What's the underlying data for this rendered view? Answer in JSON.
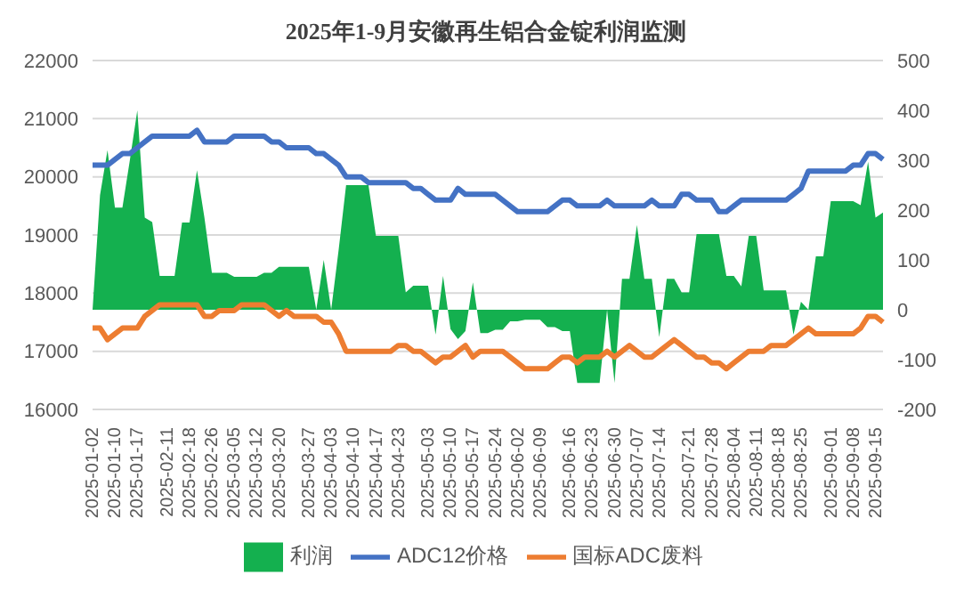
{
  "chart_data": {
    "type": "line",
    "title": "2025年1-9月安徽再生铝合金锭利润监测",
    "categories": [
      "2025-01-02",
      null,
      null,
      "2025-01-10",
      null,
      null,
      "2025-01-17",
      null,
      null,
      null,
      "2025-02-11",
      null,
      null,
      "2025-02-18",
      null,
      null,
      "2025-02-26",
      null,
      null,
      "2025-03-05",
      null,
      null,
      "2025-03-12",
      null,
      null,
      "2025-03-20",
      null,
      null,
      null,
      "2025-03-27",
      null,
      null,
      "2025-04-03",
      null,
      null,
      "2025-04-10",
      null,
      null,
      "2025-04-17",
      null,
      null,
      "2025-04-23",
      null,
      null,
      null,
      "2025-05-03",
      null,
      null,
      "2025-05-10",
      null,
      null,
      "2025-05-17",
      null,
      null,
      "2025-05-24",
      null,
      null,
      "2025-06-02",
      null,
      null,
      "2025-06-09",
      null,
      null,
      null,
      "2025-06-16",
      null,
      null,
      "2025-06-23",
      null,
      null,
      "2025-06-30",
      null,
      null,
      "2025-07-07",
      null,
      null,
      "2025-07-14",
      null,
      null,
      null,
      "2025-07-21",
      null,
      null,
      "2025-07-28",
      null,
      null,
      "2025-08-04",
      null,
      null,
      "2025-08-11",
      null,
      null,
      "2025-08-18",
      null,
      null,
      "2025-08-25",
      null,
      null,
      null,
      "2025-09-01",
      null,
      null,
      "2025-09-08",
      null,
      null,
      "2025-09-15",
      null
    ],
    "series": [
      {
        "name": "利润",
        "type": "area",
        "axis": "y2",
        "color": "#14b04f",
        "values": [
          0,
          230,
          320,
          205,
          205,
          300,
          400,
          185,
          176,
          68,
          68,
          68,
          175,
          175,
          280,
          185,
          74,
          74,
          74,
          66,
          66,
          66,
          66,
          74,
          74,
          86,
          86,
          86,
          86,
          86,
          0,
          100,
          0,
          120,
          250,
          250,
          250,
          250,
          148,
          148,
          148,
          148,
          35,
          48,
          48,
          48,
          -50,
          68,
          -39,
          -59,
          -43,
          55,
          -47,
          -47,
          -40,
          -40,
          -23,
          -23,
          -20,
          -20,
          -20,
          -35,
          -35,
          -43,
          -43,
          -147,
          -147,
          -147,
          -147,
          0,
          -147,
          62,
          62,
          170,
          62,
          62,
          -55,
          62,
          62,
          35,
          35,
          152,
          152,
          152,
          152,
          68,
          68,
          47,
          148,
          148,
          39,
          39,
          39,
          39,
          -50,
          16,
          0,
          107,
          107,
          218,
          218,
          218,
          218,
          210,
          297,
          185,
          195
        ]
      },
      {
        "name": "ADC12价格",
        "color": "#4472c4",
        "values": [
          20200,
          20200,
          20200,
          20300,
          20400,
          20400,
          20500,
          20600,
          20700,
          20700,
          20700,
          20700,
          20700,
          20700,
          20800,
          20600,
          20600,
          20600,
          20600,
          20700,
          20700,
          20700,
          20700,
          20700,
          20600,
          20600,
          20500,
          20500,
          20500,
          20500,
          20400,
          20400,
          20300,
          20200,
          20000,
          20000,
          20000,
          19900,
          19900,
          19900,
          19900,
          19900,
          19900,
          19800,
          19800,
          19700,
          19600,
          19600,
          19600,
          19800,
          19700,
          19700,
          19700,
          19700,
          19700,
          19600,
          19500,
          19400,
          19400,
          19400,
          19400,
          19400,
          19500,
          19600,
          19600,
          19500,
          19500,
          19500,
          19500,
          19600,
          19500,
          19500,
          19500,
          19500,
          19500,
          19600,
          19500,
          19500,
          19500,
          19700,
          19700,
          19600,
          19600,
          19600,
          19400,
          19400,
          19500,
          19600,
          19600,
          19600,
          19600,
          19600,
          19600,
          19600,
          19700,
          19800,
          20100,
          20100,
          20100,
          20100,
          20100,
          20100,
          20200,
          20200,
          20400,
          20400,
          20300
        ]
      },
      {
        "name": "国标ADC废料",
        "color": "#ed7d31",
        "values": [
          17400,
          17400,
          17200,
          17300,
          17400,
          17400,
          17400,
          17600,
          17700,
          17800,
          17800,
          17800,
          17800,
          17800,
          17800,
          17600,
          17600,
          17700,
          17700,
          17700,
          17800,
          17800,
          17800,
          17800,
          17700,
          17600,
          17700,
          17600,
          17600,
          17600,
          17600,
          17500,
          17500,
          17300,
          17000,
          17000,
          17000,
          17000,
          17000,
          17000,
          17000,
          17100,
          17100,
          17000,
          17000,
          16900,
          16800,
          16900,
          16900,
          17000,
          17100,
          16900,
          17000,
          17000,
          17000,
          17000,
          16900,
          16800,
          16700,
          16700,
          16700,
          16700,
          16800,
          16900,
          16900,
          16800,
          16900,
          16900,
          16900,
          17000,
          16900,
          17000,
          17100,
          17000,
          16900,
          16900,
          17000,
          17100,
          17200,
          17100,
          17000,
          16900,
          16900,
          16800,
          16800,
          16700,
          16800,
          16900,
          17000,
          17000,
          17000,
          17100,
          17100,
          17100,
          17200,
          17300,
          17400,
          17300,
          17300,
          17300,
          17300,
          17300,
          17300,
          17400,
          17600,
          17600,
          17500
        ]
      }
    ],
    "ylim": [
      16000,
      22000
    ],
    "yticks": [
      16000,
      17000,
      18000,
      19000,
      20000,
      21000,
      22000
    ],
    "y2lim": [
      -200,
      500
    ],
    "y2ticks": [
      -200,
      -100,
      0,
      100,
      200,
      300,
      400,
      500
    ],
    "grid": "y",
    "legend": "bottom",
    "marker": "none",
    "line_style": "solid"
  }
}
